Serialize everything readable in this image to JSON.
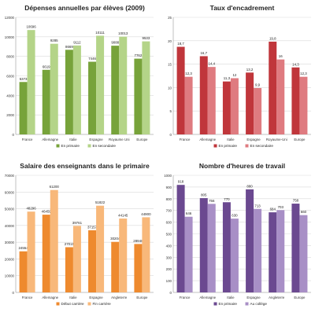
{
  "chart_data": [
    {
      "type": "bar",
      "title": "Dépenses annuelles par élèves (2009)",
      "categories": [
        "France",
        "Allemagne",
        "Italie",
        "Espagne",
        "Royaume Uni",
        "Europe"
      ],
      "series": [
        {
          "name": "En primaire",
          "values": [
            5373,
            6619,
            8669,
            7446,
            9088,
            7762
          ]
        },
        {
          "name": "En secondaire",
          "values": [
            10696,
            9285,
            9112,
            10111,
            10013,
            9533
          ]
        }
      ],
      "ylim": [
        0,
        12000
      ],
      "yticks": [
        0,
        2000,
        4000,
        6000,
        8000,
        10000,
        12000
      ],
      "data_labels": [
        "5373",
        "6619",
        "8669",
        "7446",
        "9088",
        "7762",
        "10696",
        "9285",
        "9112",
        "10111",
        "10013",
        "9533"
      ],
      "grid": true,
      "legend": "bottom",
      "colors": [
        "#77a33a",
        "#b4d488"
      ]
    },
    {
      "type": "bar",
      "title": "Taux d'encadrement",
      "categories": [
        "France",
        "Allemagne",
        "Italie",
        "Espagne",
        "Royaume-Uni",
        "Europe"
      ],
      "series": [
        {
          "name": "En primaire",
          "values": [
            18.7,
            16.7,
            11.3,
            13.2,
            19.8,
            14.3
          ]
        },
        {
          "name": "En secondaire",
          "values": [
            12.3,
            14.4,
            12,
            9.9,
            16,
            12.3
          ]
        }
      ],
      "ylim": [
        0,
        25
      ],
      "yticks": [
        0,
        5,
        10,
        15,
        20,
        25
      ],
      "data_labels": [
        "18,7",
        "16,7",
        "11,3",
        "13,2",
        "19,8",
        "14,3",
        "12,3",
        "14,4",
        "12",
        "9,9",
        "16",
        "12,3"
      ],
      "grid": true,
      "legend": "bottom",
      "colors": [
        "#c0363b",
        "#df7b80"
      ]
    },
    {
      "type": "bar",
      "title": "Salaire des enseignants dans le primaire",
      "categories": [
        "France",
        "Allemagne",
        "Italie",
        "Espagne",
        "Angleterre",
        "Europe"
      ],
      "series": [
        {
          "name": "Début carrière",
          "values": [
            24554,
            46459,
            27015,
            37157,
            30204,
            28948
          ]
        },
        {
          "name": "Fin carrière",
          "values": [
            48296,
            61200,
            39761,
            51822,
            44145,
            44900
          ]
        }
      ],
      "ylim": [
        0,
        70000
      ],
      "yticks": [
        0,
        10000,
        20000,
        30000,
        40000,
        50000,
        60000,
        70000
      ],
      "data_labels": [
        "24554",
        "46459",
        "27015",
        "37157",
        "30204",
        "28948",
        "48296",
        "61200",
        "39761",
        "51822",
        "44145",
        "44900"
      ],
      "grid": true,
      "legend": "bottom",
      "colors": [
        "#ee8a2e",
        "#f8b87a"
      ]
    },
    {
      "type": "bar",
      "title": "Nombre d'heures de travail",
      "categories": [
        "France",
        "Allemagne",
        "Italie",
        "Espagne",
        "Angleterre",
        "Europe"
      ],
      "series": [
        {
          "name": "En primaire",
          "values": [
            918,
            805,
            770,
            880,
            684,
            758
          ]
        },
        {
          "name": "Au collège",
          "values": [
            646,
            756,
            630,
            713,
            703,
            660
          ]
        }
      ],
      "ylim": [
        0,
        1000
      ],
      "yticks": [
        0,
        100,
        200,
        300,
        400,
        500,
        600,
        700,
        800,
        900,
        1000
      ],
      "data_labels": [
        "918",
        "805",
        "770",
        "880",
        "684",
        "758",
        "646",
        "756",
        "630",
        "713",
        "703",
        "660"
      ],
      "grid": true,
      "legend": "bottom",
      "colors": [
        "#6b4990",
        "#a88fc6"
      ]
    }
  ]
}
